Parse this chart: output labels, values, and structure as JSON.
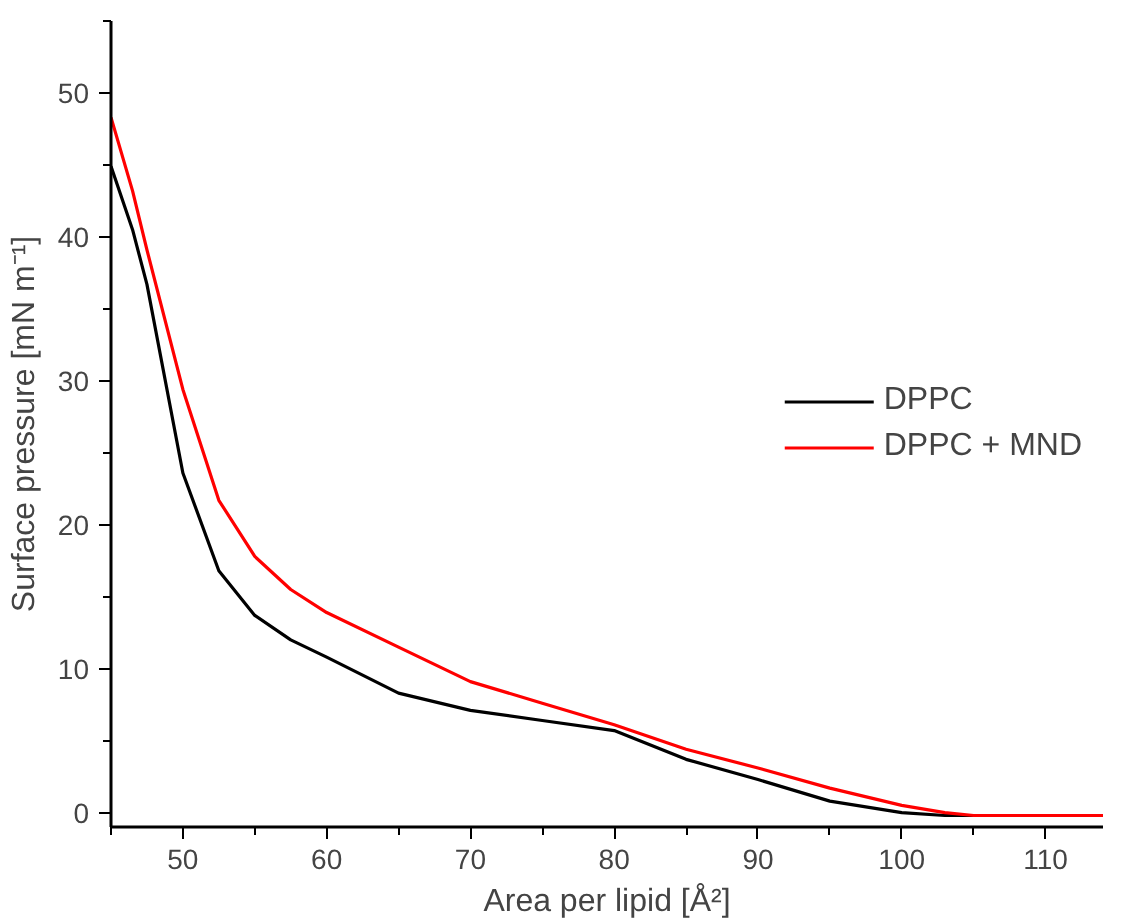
{
  "chart_data": {
    "type": "line",
    "xlabel": "Area per lipid [Å²]",
    "ylabel": "Surface pressure [mN m⁻¹]",
    "x": [
      45,
      46.5,
      47.5,
      50,
      52.5,
      55,
      57.5,
      60,
      65,
      70,
      75,
      80,
      85,
      90,
      95,
      100,
      103,
      105,
      110,
      114
    ],
    "series": [
      {
        "name": "DPPC",
        "color": "#000000",
        "values": [
          44.9,
          40.5,
          36.7,
          23.6,
          16.8,
          13.7,
          12.0,
          10.8,
          8.3,
          7.1,
          6.4,
          5.7,
          3.7,
          2.3,
          0.8,
          0.0,
          -0.2,
          -0.2,
          null,
          null
        ]
      },
      {
        "name": "DPPC + MND",
        "color": "#ff0000",
        "values": [
          48.3,
          43.2,
          39.1,
          29.4,
          21.7,
          17.8,
          15.5,
          13.9,
          11.5,
          9.1,
          7.6,
          6.1,
          4.4,
          3.1,
          1.7,
          0.5,
          0.0,
          -0.2,
          -0.2,
          -0.2
        ]
      }
    ],
    "xlim": [
      45,
      114
    ],
    "ylim": [
      -1,
      55
    ],
    "xticks": [
      50,
      60,
      70,
      80,
      90,
      100,
      110
    ],
    "yticks": [
      0,
      10,
      20,
      30,
      40,
      50
    ],
    "grid": false,
    "legend": "right",
    "line_style": "solid",
    "marker": "none"
  }
}
